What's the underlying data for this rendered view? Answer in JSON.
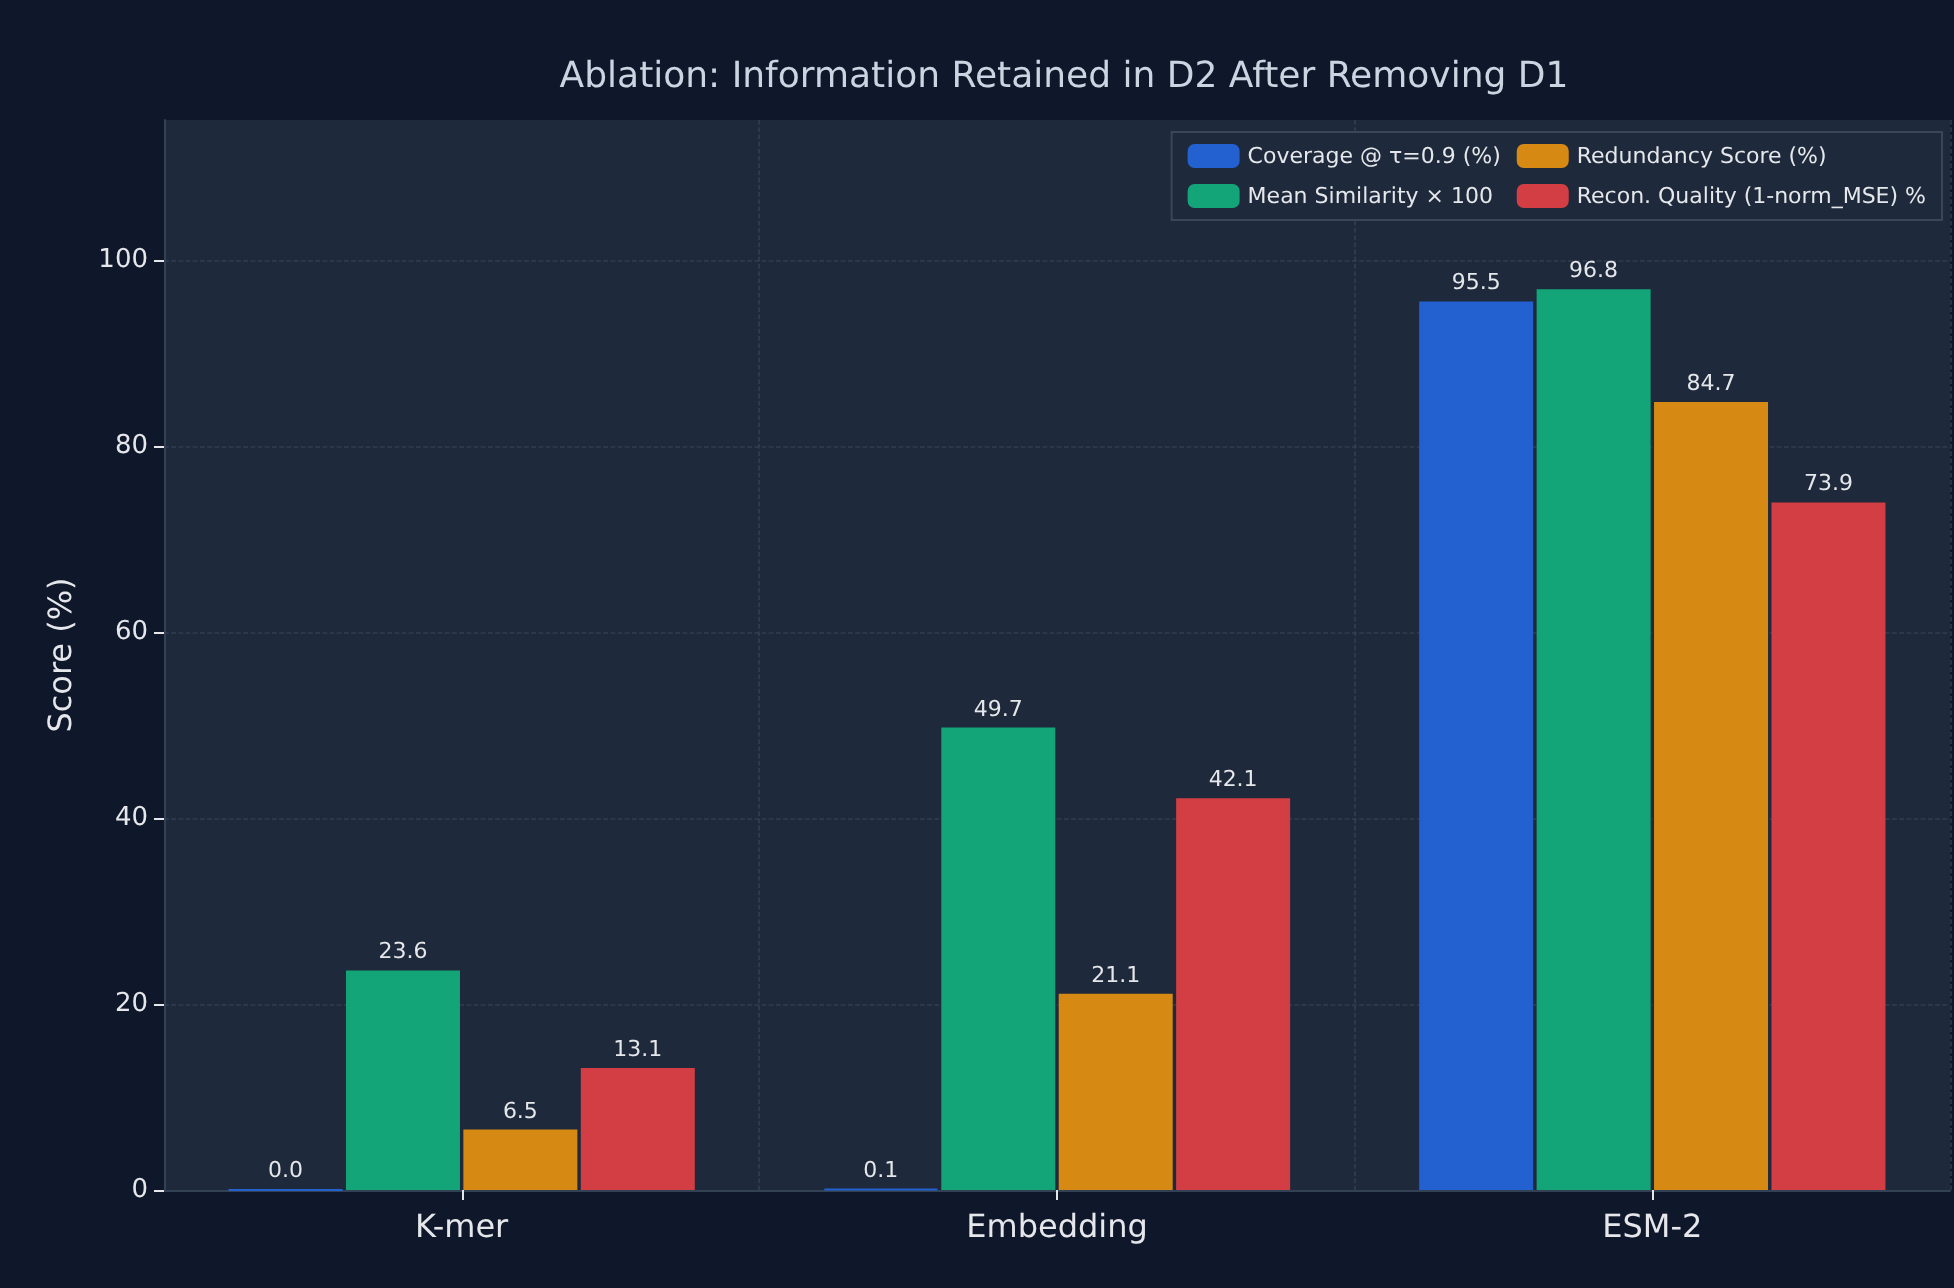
{
  "chart_data": {
    "type": "bar",
    "title": "Ablation: Information Retained in D2 After Removing D1",
    "ylabel": "Score (%)",
    "categories": [
      "K-mer",
      "Embedding",
      "ESM-2"
    ],
    "series": [
      {
        "name": "Coverage @ τ=0.9 (%)",
        "color": "#2360d0",
        "values": [
          0.0,
          0.1,
          95.5
        ],
        "value_labels": [
          "0.0",
          "0.1",
          "95.5"
        ]
      },
      {
        "name": "Mean Similarity × 100",
        "color": "#13a578",
        "values": [
          23.6,
          49.7,
          96.8
        ],
        "value_labels": [
          "23.6",
          "49.7",
          "96.8"
        ]
      },
      {
        "name": "Redundancy Score (%)",
        "color": "#d68a14",
        "values": [
          6.5,
          21.1,
          84.7
        ],
        "value_labels": [
          "6.5",
          "21.1",
          "84.7"
        ]
      },
      {
        "name": "Recon. Quality (1-norm_MSE) %",
        "color": "#d23e44",
        "values": [
          13.1,
          42.1,
          73.9
        ],
        "value_labels": [
          "13.1",
          "42.1",
          "73.9"
        ]
      }
    ],
    "ylim": [
      0,
      115
    ],
    "yticks": [
      0,
      20,
      40,
      60,
      80,
      100
    ],
    "grid": true,
    "legend": "top right"
  }
}
